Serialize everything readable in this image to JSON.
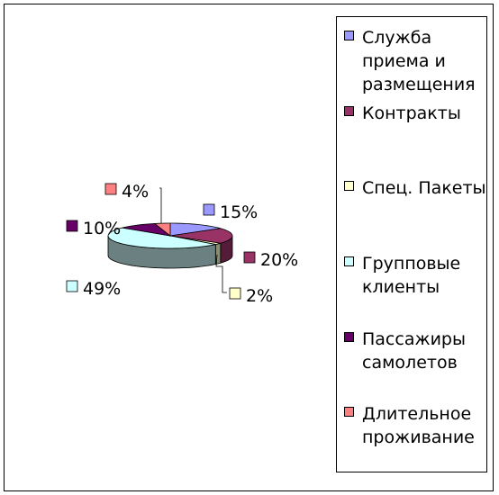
{
  "chart_data": {
    "type": "pie",
    "style": "3d",
    "legend_position": "right",
    "slices": [
      {
        "label": "Служба приема и размещения",
        "value": 15,
        "value_label": "15%",
        "color": "#9999ff"
      },
      {
        "label": "Контракты",
        "value": 20,
        "value_label": "20%",
        "color": "#993366"
      },
      {
        "label": "Спец. Пакеты",
        "value": 2,
        "value_label": "2%",
        "color": "#ffffcc"
      },
      {
        "label": "Групповые клиенты",
        "value": 49,
        "value_label": "49%",
        "color": "#ccffff"
      },
      {
        "label": "Пассажиры самолетов",
        "value": 10,
        "value_label": "10%",
        "color": "#660066"
      },
      {
        "label": "Длительное проживание",
        "value": 4,
        "value_label": "4%",
        "color": "#ff8080"
      }
    ]
  }
}
